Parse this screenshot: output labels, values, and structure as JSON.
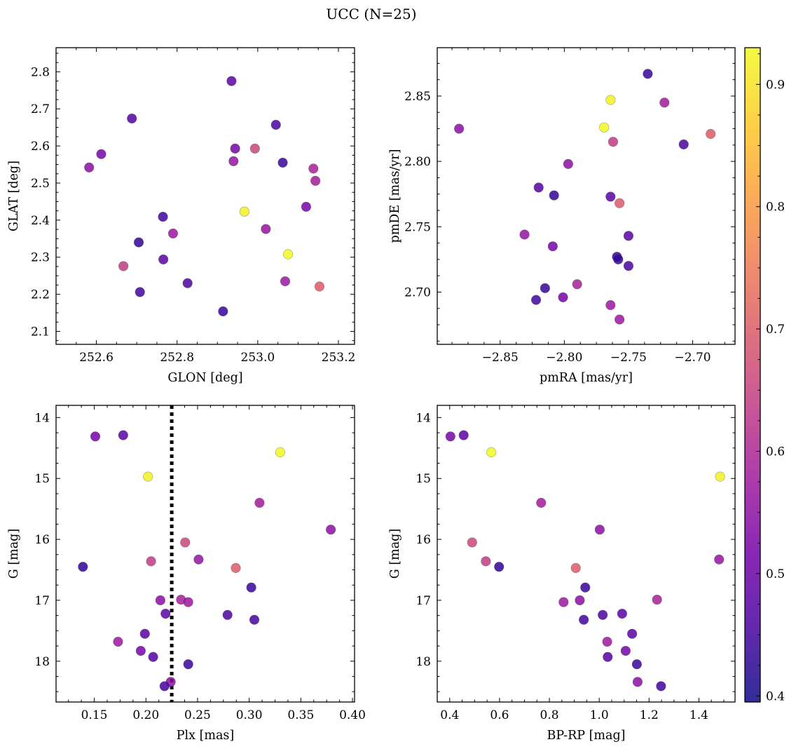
{
  "figure": {
    "title": "UCC (N=25)"
  },
  "colorbar": {
    "min": 0.395,
    "max": 0.93,
    "ticks": [
      0.4,
      0.5,
      0.6,
      0.7,
      0.8,
      0.9
    ],
    "tick_labels": [
      "0.4",
      "0.5",
      "0.6",
      "0.7",
      "0.8",
      "0.9"
    ],
    "colormap": "plasma",
    "stops": [
      "#0d0887",
      "#46039f",
      "#7201a8",
      "#9c179e",
      "#bd3786",
      "#d8576b",
      "#ed7953",
      "#fb9f3a",
      "#fdca26",
      "#f0f921"
    ],
    "color_low": "#0d0887",
    "color_high": "#f0f921"
  },
  "chart_data": [
    {
      "type": "scatter",
      "xlabel": "GLON [deg]",
      "ylabel": "GLAT [deg]",
      "xlim": [
        252.5,
        253.24
      ],
      "ylim": [
        2.065,
        2.865
      ],
      "xticks": [
        252.6,
        252.8,
        253.0,
        253.2
      ],
      "xtick_labels": [
        "252.6",
        "252.8",
        "253.0",
        "253.2"
      ],
      "yticks": [
        2.1,
        2.2,
        2.3,
        2.4,
        2.5,
        2.6,
        2.7,
        2.8
      ],
      "ytick_labels": [
        "2.1",
        "2.2",
        "2.3",
        "2.4",
        "2.5",
        "2.6",
        "2.7",
        "2.8"
      ],
      "points": [
        {
          "x": 252.935,
          "y": 2.775,
          "c": 0.48
        },
        {
          "x": 252.688,
          "y": 2.674,
          "c": 0.47
        },
        {
          "x": 253.045,
          "y": 2.657,
          "c": 0.46
        },
        {
          "x": 252.612,
          "y": 2.578,
          "c": 0.52
        },
        {
          "x": 252.944,
          "y": 2.593,
          "c": 0.52
        },
        {
          "x": 252.993,
          "y": 2.593,
          "c": 0.66
        },
        {
          "x": 252.582,
          "y": 2.542,
          "c": 0.55
        },
        {
          "x": 252.94,
          "y": 2.559,
          "c": 0.56
        },
        {
          "x": 253.062,
          "y": 2.555,
          "c": 0.44
        },
        {
          "x": 253.138,
          "y": 2.539,
          "c": 0.59
        },
        {
          "x": 253.143,
          "y": 2.506,
          "c": 0.58
        },
        {
          "x": 253.12,
          "y": 2.436,
          "c": 0.52
        },
        {
          "x": 252.967,
          "y": 2.423,
          "c": 0.92
        },
        {
          "x": 252.765,
          "y": 2.409,
          "c": 0.45
        },
        {
          "x": 253.02,
          "y": 2.376,
          "c": 0.56
        },
        {
          "x": 252.79,
          "y": 2.364,
          "c": 0.57
        },
        {
          "x": 252.705,
          "y": 2.34,
          "c": 0.43
        },
        {
          "x": 253.075,
          "y": 2.308,
          "c": 0.93
        },
        {
          "x": 252.766,
          "y": 2.294,
          "c": 0.48
        },
        {
          "x": 252.667,
          "y": 2.276,
          "c": 0.64
        },
        {
          "x": 253.068,
          "y": 2.235,
          "c": 0.57
        },
        {
          "x": 252.826,
          "y": 2.23,
          "c": 0.46
        },
        {
          "x": 253.153,
          "y": 2.221,
          "c": 0.7
        },
        {
          "x": 252.708,
          "y": 2.206,
          "c": 0.45
        },
        {
          "x": 252.914,
          "y": 2.154,
          "c": 0.44
        }
      ]
    },
    {
      "type": "scatter",
      "xlabel": "pmRA [mas/yr]",
      "ylabel": "pmDE [mas/yr]",
      "xlim": [
        -2.899,
        -2.667
      ],
      "ylim": [
        2.66,
        2.887
      ],
      "xticks": [
        -2.85,
        -2.8,
        -2.75,
        -2.7
      ],
      "xtick_labels": [
        "−2.85",
        "−2.80",
        "−2.75",
        "−2.70"
      ],
      "yticks": [
        2.7,
        2.75,
        2.8,
        2.85
      ],
      "ytick_labels": [
        "2.70",
        "2.75",
        "2.80",
        "2.85"
      ],
      "points": [
        {
          "x": -2.735,
          "y": 2.867,
          "c": 0.44
        },
        {
          "x": -2.764,
          "y": 2.847,
          "c": 0.92
        },
        {
          "x": -2.722,
          "y": 2.845,
          "c": 0.58
        },
        {
          "x": -2.769,
          "y": 2.826,
          "c": 0.93
        },
        {
          "x": -2.882,
          "y": 2.825,
          "c": 0.55
        },
        {
          "x": -2.686,
          "y": 2.821,
          "c": 0.7
        },
        {
          "x": -2.762,
          "y": 2.815,
          "c": 0.64
        },
        {
          "x": -2.707,
          "y": 2.813,
          "c": 0.46
        },
        {
          "x": -2.797,
          "y": 2.798,
          "c": 0.55
        },
        {
          "x": -2.82,
          "y": 2.78,
          "c": 0.47
        },
        {
          "x": -2.808,
          "y": 2.774,
          "c": 0.43
        },
        {
          "x": -2.764,
          "y": 2.773,
          "c": 0.48
        },
        {
          "x": -2.757,
          "y": 2.768,
          "c": 0.7
        },
        {
          "x": -2.831,
          "y": 2.744,
          "c": 0.56
        },
        {
          "x": -2.75,
          "y": 2.743,
          "c": 0.48
        },
        {
          "x": -2.809,
          "y": 2.735,
          "c": 0.52
        },
        {
          "x": -2.759,
          "y": 2.727,
          "c": 0.44
        },
        {
          "x": -2.758,
          "y": 2.725,
          "c": 0.43
        },
        {
          "x": -2.75,
          "y": 2.72,
          "c": 0.46
        },
        {
          "x": -2.79,
          "y": 2.706,
          "c": 0.59
        },
        {
          "x": -2.815,
          "y": 2.703,
          "c": 0.44
        },
        {
          "x": -2.801,
          "y": 2.696,
          "c": 0.52
        },
        {
          "x": -2.822,
          "y": 2.694,
          "c": 0.45
        },
        {
          "x": -2.764,
          "y": 2.69,
          "c": 0.57
        },
        {
          "x": -2.757,
          "y": 2.679,
          "c": 0.57
        }
      ]
    },
    {
      "type": "scatter",
      "xlabel": "Plx [mas]",
      "ylabel": "G [mag]",
      "xlim": [
        0.113,
        0.402
      ],
      "ylim": [
        18.67,
        13.8
      ],
      "yaxis_inverted": true,
      "xticks": [
        0.15,
        0.2,
        0.25,
        0.3,
        0.35,
        0.4
      ],
      "xtick_labels": [
        "0.15",
        "0.20",
        "0.25",
        "0.30",
        "0.35",
        "0.40"
      ],
      "yticks": [
        14,
        15,
        16,
        17,
        18
      ],
      "ytick_labels": [
        "14",
        "15",
        "16",
        "17",
        "18"
      ],
      "vline": {
        "x": 0.225,
        "style": "dotted",
        "color": "#000000"
      },
      "points": [
        {
          "x": 0.151,
          "y": 14.31,
          "c": 0.52
        },
        {
          "x": 0.178,
          "y": 14.29,
          "c": 0.48
        },
        {
          "x": 0.33,
          "y": 14.57,
          "c": 0.93
        },
        {
          "x": 0.202,
          "y": 14.97,
          "c": 0.92
        },
        {
          "x": 0.31,
          "y": 15.4,
          "c": 0.58
        },
        {
          "x": 0.379,
          "y": 15.84,
          "c": 0.55
        },
        {
          "x": 0.238,
          "y": 16.05,
          "c": 0.66
        },
        {
          "x": 0.251,
          "y": 16.33,
          "c": 0.56
        },
        {
          "x": 0.205,
          "y": 16.36,
          "c": 0.64
        },
        {
          "x": 0.139,
          "y": 16.45,
          "c": 0.43
        },
        {
          "x": 0.287,
          "y": 16.47,
          "c": 0.7
        },
        {
          "x": 0.302,
          "y": 16.79,
          "c": 0.44
        },
        {
          "x": 0.234,
          "y": 16.99,
          "c": 0.59
        },
        {
          "x": 0.214,
          "y": 17.0,
          "c": 0.55
        },
        {
          "x": 0.241,
          "y": 17.03,
          "c": 0.57
        },
        {
          "x": 0.219,
          "y": 17.22,
          "c": 0.48
        },
        {
          "x": 0.279,
          "y": 17.24,
          "c": 0.46
        },
        {
          "x": 0.305,
          "y": 17.32,
          "c": 0.45
        },
        {
          "x": 0.199,
          "y": 17.55,
          "c": 0.48
        },
        {
          "x": 0.173,
          "y": 17.68,
          "c": 0.57
        },
        {
          "x": 0.195,
          "y": 17.83,
          "c": 0.52
        },
        {
          "x": 0.207,
          "y": 17.93,
          "c": 0.47
        },
        {
          "x": 0.241,
          "y": 18.05,
          "c": 0.44
        },
        {
          "x": 0.224,
          "y": 18.34,
          "c": 0.55
        },
        {
          "x": 0.218,
          "y": 18.41,
          "c": 0.45
        }
      ]
    },
    {
      "type": "scatter",
      "xlabel": "BP-RP [mag]",
      "ylabel": "G [mag]",
      "xlim": [
        0.35,
        1.545
      ],
      "ylim": [
        18.67,
        13.8
      ],
      "yaxis_inverted": true,
      "xticks": [
        0.4,
        0.6,
        0.8,
        1.0,
        1.2,
        1.4
      ],
      "xtick_labels": [
        "0.4",
        "0.6",
        "0.8",
        "1.0",
        "1.2",
        "1.4"
      ],
      "yticks": [
        14,
        15,
        16,
        17,
        18
      ],
      "ytick_labels": [
        "14",
        "15",
        "16",
        "17",
        "18"
      ],
      "points": [
        {
          "x": 0.403,
          "y": 14.31,
          "c": 0.52
        },
        {
          "x": 0.456,
          "y": 14.29,
          "c": 0.48
        },
        {
          "x": 0.567,
          "y": 14.57,
          "c": 0.93
        },
        {
          "x": 1.485,
          "y": 14.97,
          "c": 0.92
        },
        {
          "x": 0.767,
          "y": 15.4,
          "c": 0.58
        },
        {
          "x": 1.002,
          "y": 15.84,
          "c": 0.55
        },
        {
          "x": 0.49,
          "y": 16.05,
          "c": 0.66
        },
        {
          "x": 1.481,
          "y": 16.33,
          "c": 0.56
        },
        {
          "x": 0.545,
          "y": 16.36,
          "c": 0.64
        },
        {
          "x": 0.598,
          "y": 16.45,
          "c": 0.43
        },
        {
          "x": 0.906,
          "y": 16.47,
          "c": 0.7
        },
        {
          "x": 0.944,
          "y": 16.79,
          "c": 0.44
        },
        {
          "x": 1.232,
          "y": 16.99,
          "c": 0.59
        },
        {
          "x": 0.922,
          "y": 17.0,
          "c": 0.55
        },
        {
          "x": 0.857,
          "y": 17.03,
          "c": 0.57
        },
        {
          "x": 1.092,
          "y": 17.22,
          "c": 0.48
        },
        {
          "x": 1.014,
          "y": 17.24,
          "c": 0.46
        },
        {
          "x": 0.938,
          "y": 17.32,
          "c": 0.45
        },
        {
          "x": 1.132,
          "y": 17.55,
          "c": 0.48
        },
        {
          "x": 1.032,
          "y": 17.68,
          "c": 0.57
        },
        {
          "x": 1.106,
          "y": 17.83,
          "c": 0.52
        },
        {
          "x": 1.034,
          "y": 17.93,
          "c": 0.47
        },
        {
          "x": 1.151,
          "y": 18.05,
          "c": 0.44
        },
        {
          "x": 1.154,
          "y": 18.34,
          "c": 0.55
        },
        {
          "x": 1.248,
          "y": 18.41,
          "c": 0.45
        }
      ]
    }
  ]
}
